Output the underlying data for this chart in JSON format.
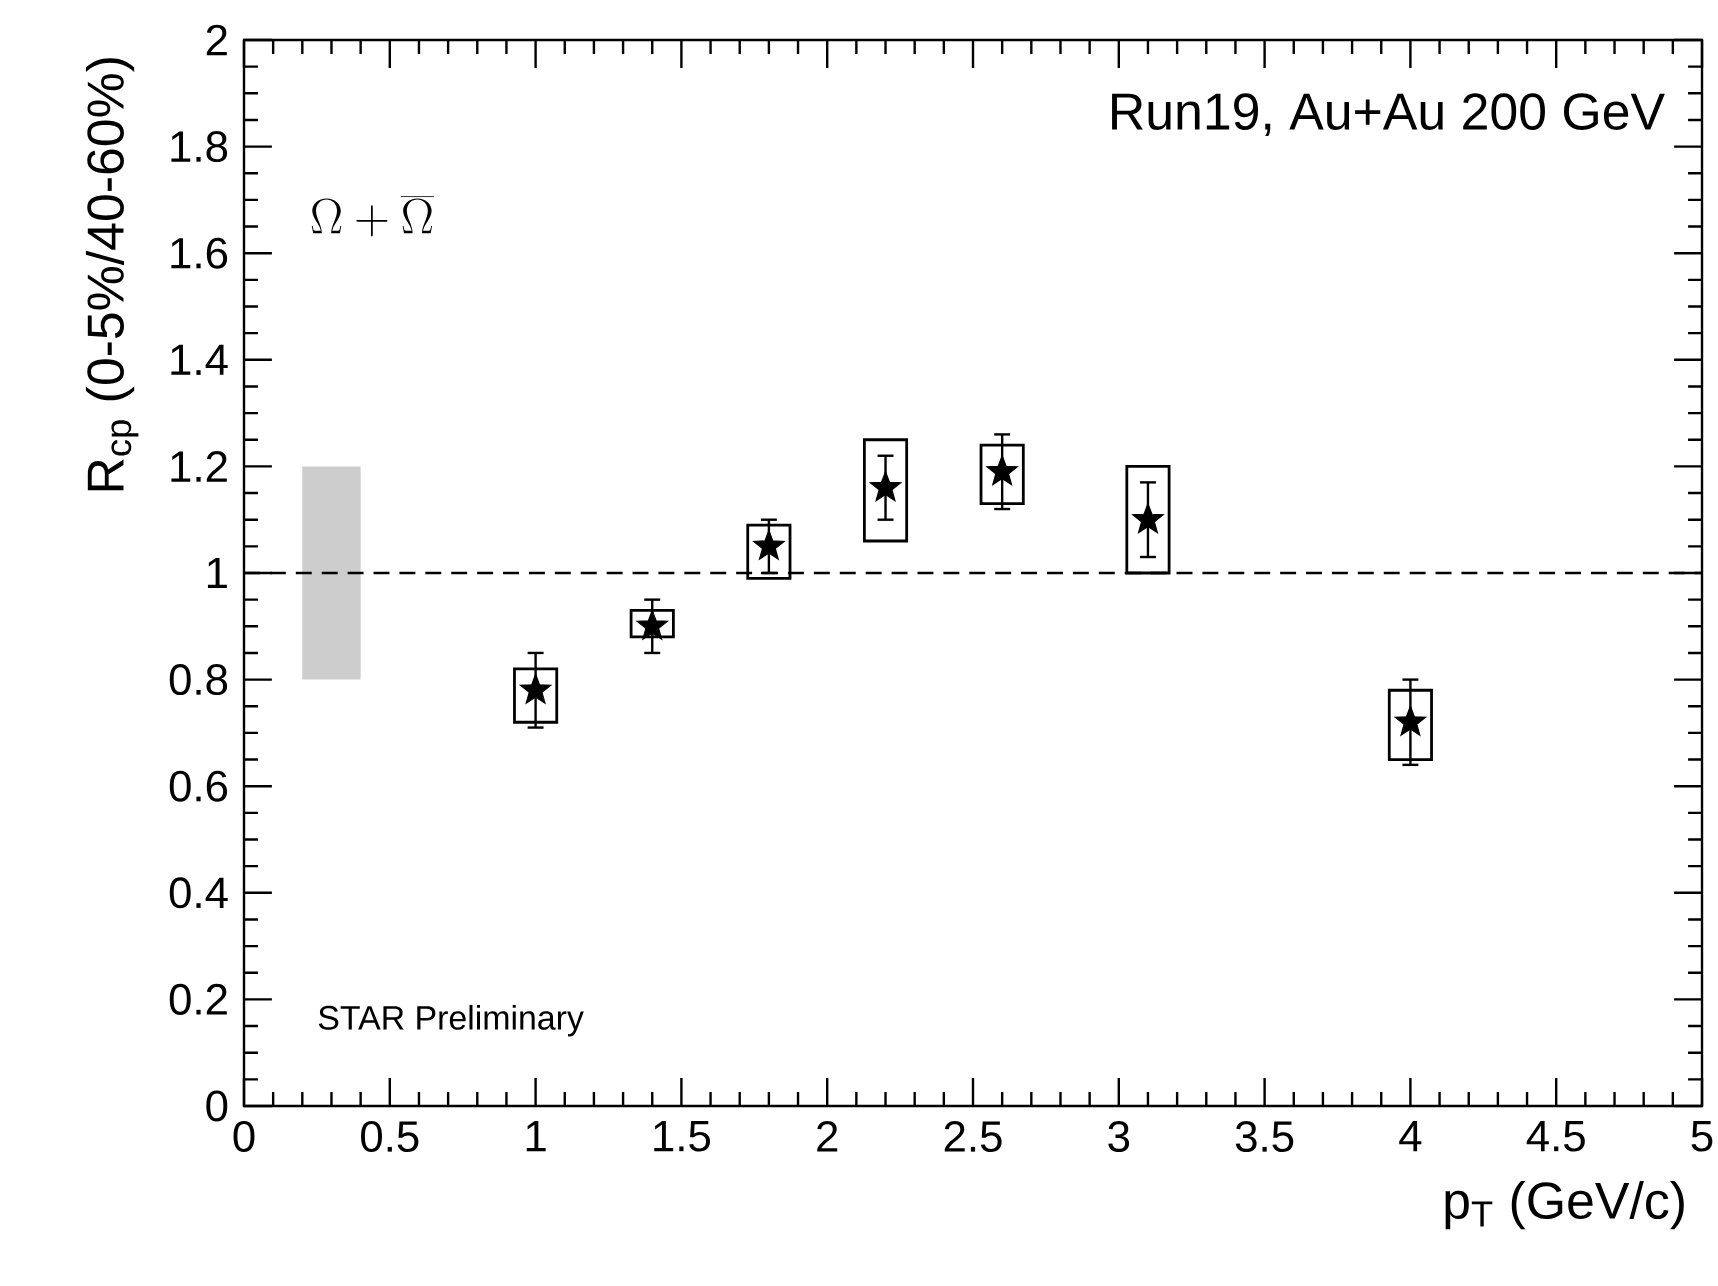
{
  "chart_data": {
    "type": "scatter",
    "xlabel": "p$_{T}$ (GeV/c)",
    "ylabel": "R$_{cp}$ (0-5%/40-60%)",
    "xlim": [
      0,
      5
    ],
    "ylim": [
      0,
      2
    ],
    "xticks": [
      0,
      0.5,
      1,
      1.5,
      2,
      2.5,
      3,
      3.5,
      4,
      4.5,
      5
    ],
    "yticks": [
      0,
      0.2,
      0.4,
      0.6,
      0.8,
      1,
      1.2,
      1.4,
      1.6,
      1.8,
      2
    ],
    "marker": "star",
    "series": [
      {
        "color": "#000000",
        "x": [
          1.0,
          1.4,
          1.8,
          2.2,
          2.6,
          3.1,
          4.0
        ],
        "values": [
          0.78,
          0.9,
          1.05,
          1.16,
          1.19,
          1.1,
          0.72
        ],
        "errors": [
          0.07,
          0.05,
          0.05,
          0.06,
          0.07,
          0.07,
          0.08
        ]
      },
      {
        "type": "bar",
        "color": "#000000",
        "x": [
          1.0,
          1.4,
          1.8,
          2.2,
          2.6,
          3.1,
          4.0
        ],
        "base": [
          0.72,
          0.88,
          0.99,
          1.06,
          1.13,
          1.0,
          0.65
        ],
        "values": [
          0.1,
          0.05,
          0.1,
          0.19,
          0.11,
          0.2,
          0.13
        ]
      },
      {
        "type": "bar",
        "color": "#cccccc",
        "x": [
          0.3
        ],
        "base": [
          0.8
        ],
        "values": [
          0.4
        ]
      }
    ],
    "ref_lines": [
      {
        "axis": "y",
        "value": 1,
        "line_style": "dashed"
      }
    ],
    "annotations": [
      "Run19, Au+Au 200 GeV",
      "\\Omega + \\overline{\\Omega}",
      "STAR Preliminary"
    ]
  }
}
